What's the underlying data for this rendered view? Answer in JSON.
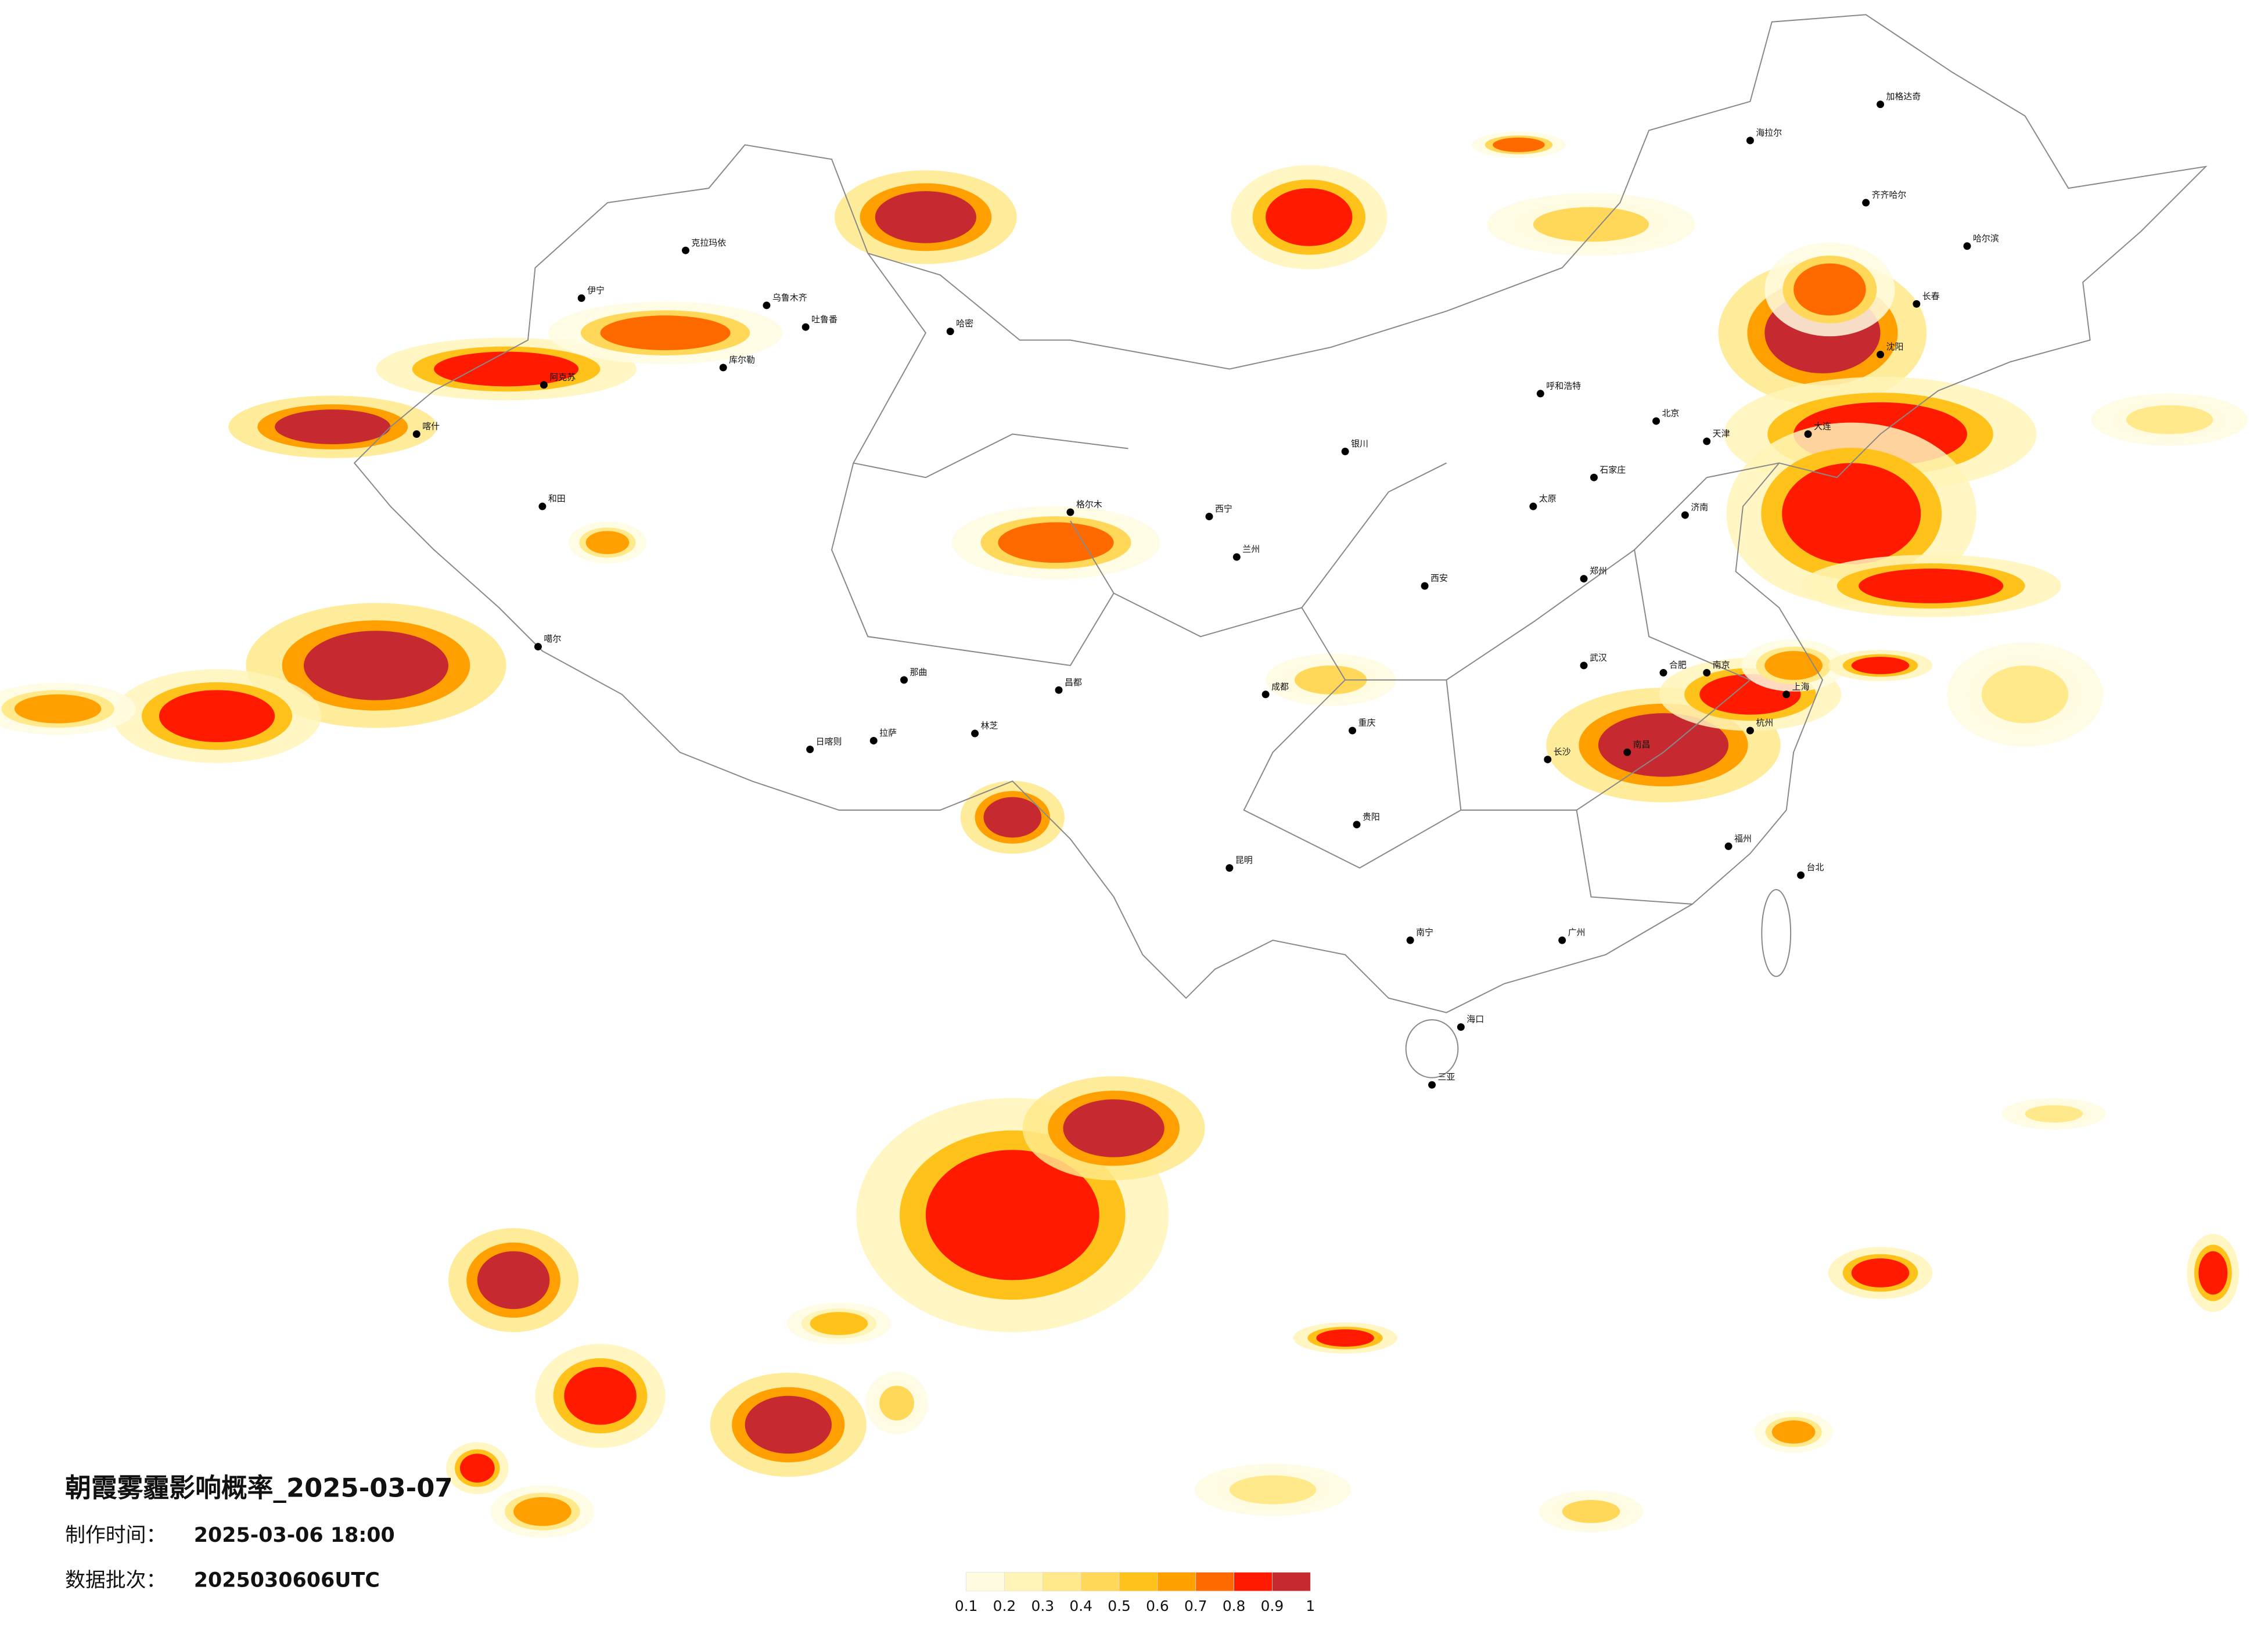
{
  "title": "朝霞雾霾影响概率_2025-03-07",
  "issue_time": {
    "label": "制作时间：",
    "value": "2025-03-06 18:00"
  },
  "batch": {
    "label": "数据批次：",
    "value": "2025030606UTC"
  },
  "legend": {
    "colors": [
      "#fffbe0",
      "#fff4b8",
      "#ffe98a",
      "#ffd85a",
      "#ffc21a",
      "#ffa000",
      "#ff6a00",
      "#ff1a00",
      "#c62a30"
    ],
    "ticks": [
      0.1,
      0.2,
      0.3,
      0.4,
      0.5,
      0.6,
      0.7,
      0.8,
      0.9,
      1
    ]
  },
  "cities": [
    "克拉玛依",
    "伊宁",
    "乌鲁木齐",
    "吐鲁番",
    "哈密",
    "库尔勒",
    "阿克苏",
    "喀什",
    "和田",
    "噶尔",
    "日喀则",
    "拉萨",
    "林芝",
    "那曲",
    "昌都",
    "格尔木",
    "西宁",
    "兰州",
    "银川",
    "呼和浩特",
    "北京",
    "天津",
    "石家庄",
    "太原",
    "济南",
    "郑州",
    "西安",
    "成都",
    "重庆",
    "武汉",
    "南京",
    "上海",
    "杭州",
    "合肥",
    "长沙",
    "南昌",
    "福州",
    "广州",
    "南宁",
    "贵阳",
    "昆明",
    "海口",
    "三亚",
    "台北",
    "哈尔滨",
    "长春",
    "沈阳",
    "大连",
    "齐齐哈尔",
    "海拉尔",
    "加格达奇"
  ]
}
